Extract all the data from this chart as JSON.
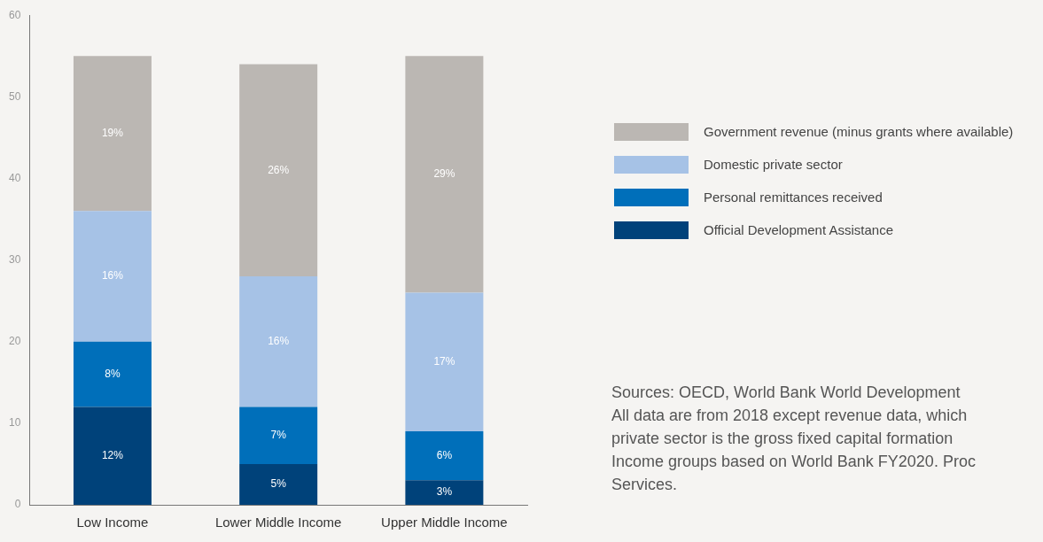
{
  "chart_data": {
    "type": "bar",
    "stacked": true,
    "categories": [
      "Low Income",
      "Lower Middle Income",
      "Upper Middle Income"
    ],
    "series": [
      {
        "name": "Official Development Assistance",
        "color": "#00427a",
        "values": [
          12,
          5,
          3
        ],
        "value_labels": [
          "12%",
          "5%",
          "3%"
        ]
      },
      {
        "name": "Personal remittances received",
        "color": "#006fba",
        "values": [
          8,
          7,
          6
        ],
        "value_labels": [
          "8%",
          "7%",
          "6%"
        ]
      },
      {
        "name": "Domestic private sector",
        "color": "#a6c2e6",
        "values": [
          16,
          16,
          17
        ],
        "value_labels": [
          "16%",
          "16%",
          "17%"
        ]
      },
      {
        "name": "Government revenue (minus grants where available)",
        "color": "#bbb7b3",
        "values": [
          19,
          26,
          29
        ],
        "value_labels": [
          "19%",
          "26%",
          "29%"
        ]
      }
    ],
    "ylim": [
      0,
      60
    ],
    "yticks": [
      0,
      10,
      20,
      30,
      40,
      50,
      60
    ],
    "grid": false,
    "legend": "right",
    "annotations": [
      "Sources: OECD, World Bank World Development",
      "All data are from 2018 except revenue data, which",
      "private sector is the gross fixed capital formation",
      "Income groups based on World Bank FY2020. Proc",
      "Services."
    ]
  }
}
